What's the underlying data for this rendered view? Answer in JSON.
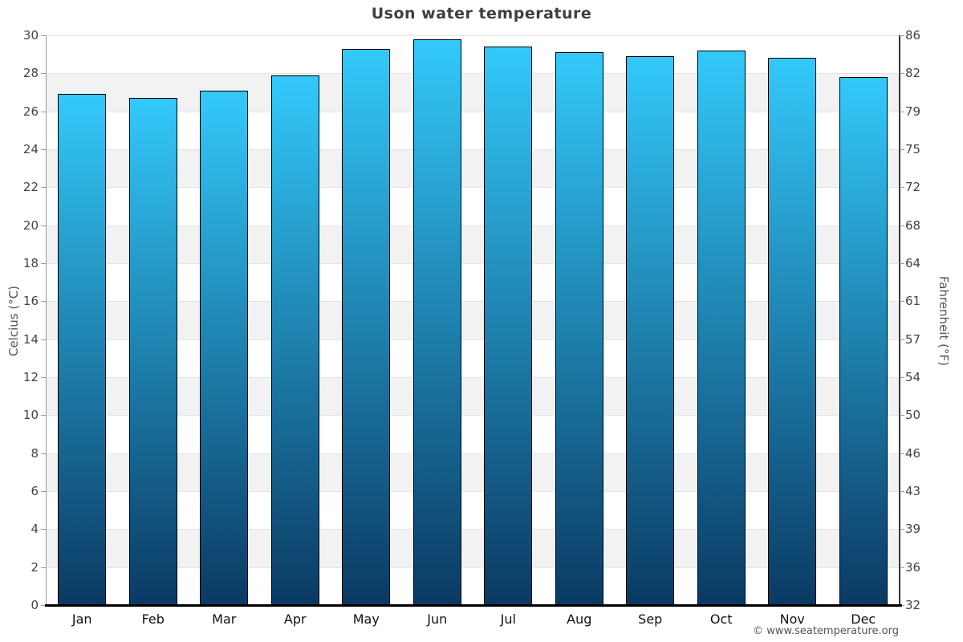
{
  "title": "Uson water temperature",
  "footer": {
    "text": "© www.seatemperature.org"
  },
  "chart_data": {
    "type": "bar",
    "title": "Uson water temperature",
    "categories": [
      "Jan",
      "Feb",
      "Mar",
      "Apr",
      "May",
      "Jun",
      "Jul",
      "Aug",
      "Sep",
      "Oct",
      "Nov",
      "Dec"
    ],
    "series": [
      {
        "name": "Water temperature",
        "unit": "°C",
        "values": [
          26.9,
          26.7,
          27.1,
          27.9,
          29.3,
          29.8,
          29.4,
          29.1,
          28.9,
          29.2,
          28.8,
          27.8
        ]
      }
    ],
    "ylabel_left": "Celcius (°C)",
    "ylabel_right": "Fahrenheit (°F)",
    "y_left_ticks": [
      30,
      28,
      26,
      24,
      22,
      20,
      18,
      16,
      14,
      12,
      10,
      8,
      6,
      4,
      2,
      0
    ],
    "y_right_ticks": [
      86,
      82,
      79,
      75,
      72,
      68,
      64,
      61,
      57,
      54,
      50,
      46,
      43,
      39,
      36,
      32
    ],
    "ylim": [
      0,
      30
    ],
    "grid": "horizontal-bands-alternating",
    "legend": "none",
    "colors": {
      "bar_top": "#33c9fa",
      "bar_bottom": "#0a3a63",
      "bar_border": "#000000",
      "band_white": "#ffffff",
      "band_alt": "#f2f2f2",
      "gridline": "#e4e4e4",
      "title_text": "#3f3f3f",
      "tick_text": "#444444",
      "month_text": "#111111",
      "axis_title_text": "#555555",
      "footer_text": "#555555"
    }
  }
}
